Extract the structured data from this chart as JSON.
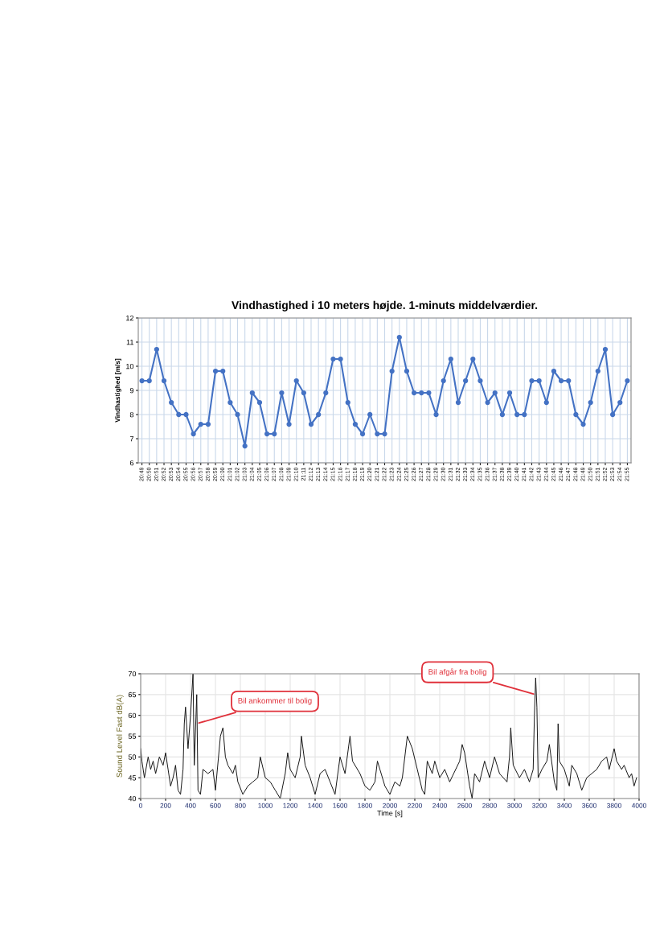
{
  "chart_data": [
    {
      "type": "line",
      "title": "Vindhastighed i 10 meters højde. 1-minuts middelværdier.",
      "ylabel": "Vindhastighed [m/s]",
      "categories": [
        "20:49",
        "20:50",
        "20:51",
        "20:52",
        "20:53",
        "20:54",
        "20:55",
        "20:56",
        "20:57",
        "20:58",
        "20:59",
        "21:00",
        "21:01",
        "21:02",
        "21:03",
        "21:04",
        "21:05",
        "21:06",
        "21:07",
        "21:08",
        "21:09",
        "21:10",
        "21:11",
        "21:12",
        "21:13",
        "21:14",
        "21:15",
        "21:16",
        "21:17",
        "21:18",
        "21:19",
        "21:20",
        "21:21",
        "21:22",
        "21:23",
        "21:24",
        "21:25",
        "21:26",
        "21:27",
        "21:28",
        "21:29",
        "21:30",
        "21:31",
        "21:32",
        "21:33",
        "21:34",
        "21:35",
        "21:36",
        "21:37",
        "21:38",
        "21:39",
        "21:40",
        "21:41",
        "21:42",
        "21:43",
        "21:44",
        "21:45",
        "21:46",
        "21:47",
        "21:48",
        "21:49",
        "21:50",
        "21:51",
        "21:52",
        "21:53",
        "21:54",
        "21:55"
      ],
      "series": [
        {
          "color": "#4472c4",
          "values": [
            9.4,
            9.4,
            10.7,
            9.4,
            8.5,
            8.0,
            8.0,
            7.2,
            7.6,
            7.6,
            9.8,
            9.8,
            8.5,
            8.0,
            6.7,
            8.9,
            8.5,
            7.2,
            7.2,
            8.9,
            7.6,
            9.4,
            8.9,
            7.6,
            8.0,
            8.9,
            10.3,
            10.3,
            8.5,
            7.6,
            7.2,
            8.0,
            7.2,
            7.2,
            9.8,
            11.2,
            9.8,
            8.9,
            8.9,
            8.9,
            8.0,
            9.4,
            10.3,
            8.5,
            9.4,
            10.3,
            9.4,
            8.5,
            8.9,
            8.0,
            8.9,
            8.0,
            8.0,
            9.4,
            9.4,
            8.5,
            9.8,
            9.4,
            9.4,
            8.0,
            7.6,
            8.5,
            9.8,
            10.7,
            8.0,
            8.5,
            9.4
          ]
        }
      ],
      "ylim": [
        6,
        12
      ],
      "yticks": [
        6,
        7,
        8,
        9,
        10,
        11,
        12
      ],
      "grid": true,
      "marker": "circle",
      "line_style": "solid"
    },
    {
      "type": "line",
      "xlabel": "Time [s]",
      "ylabel": "Sound Level Fast dB(A)",
      "series": [
        {
          "color": "#111111",
          "x": [
            0,
            10,
            30,
            60,
            80,
            100,
            120,
            150,
            180,
            200,
            220,
            240,
            260,
            280,
            300,
            320,
            340,
            350,
            360,
            380,
            400,
            420,
            430,
            450,
            460,
            480,
            500,
            540,
            580,
            600,
            640,
            660,
            680,
            700,
            740,
            760,
            780,
            820,
            860,
            900,
            940,
            960,
            1000,
            1040,
            1080,
            1120,
            1160,
            1180,
            1200,
            1240,
            1280,
            1290,
            1320,
            1360,
            1400,
            1440,
            1480,
            1520,
            1560,
            1600,
            1640,
            1680,
            1700,
            1760,
            1800,
            1840,
            1880,
            1900,
            1920,
            1960,
            2000,
            2040,
            2080,
            2100,
            2140,
            2180,
            2220,
            2260,
            2280,
            2300,
            2340,
            2360,
            2400,
            2440,
            2480,
            2560,
            2580,
            2600,
            2640,
            2660,
            2680,
            2720,
            2760,
            2800,
            2840,
            2880,
            2940,
            2960,
            2970,
            2990,
            3040,
            3080,
            3120,
            3150,
            3160,
            3170,
            3180,
            3190,
            3220,
            3260,
            3280,
            3320,
            3340,
            3350,
            3360,
            3400,
            3440,
            3460,
            3500,
            3540,
            3580,
            3620,
            3660,
            3700,
            3740,
            3760,
            3800,
            3820,
            3860,
            3880,
            3920,
            3940,
            3960,
            3980
          ],
          "values": [
            52,
            49,
            45,
            50,
            47,
            49,
            46,
            50,
            48,
            51,
            47,
            43,
            45,
            48,
            42,
            41,
            47,
            58,
            62,
            52,
            60,
            70,
            48,
            65,
            42,
            41,
            47,
            46,
            47,
            42,
            55,
            57,
            50,
            48,
            46,
            48,
            44,
            41,
            43,
            44,
            45,
            50,
            45,
            44,
            42,
            40,
            46,
            51,
            47,
            45,
            50,
            55,
            48,
            45,
            41,
            46,
            47,
            44,
            41,
            50,
            46,
            55,
            49,
            46,
            43,
            42,
            44,
            49,
            47,
            43,
            41,
            44,
            43,
            45,
            55,
            52,
            47,
            42,
            41,
            49,
            46,
            49,
            45,
            47,
            44,
            49,
            53,
            51,
            43,
            40,
            46,
            44,
            49,
            45,
            50,
            46,
            44,
            50,
            57,
            48,
            45,
            47,
            44,
            47,
            60,
            69,
            62,
            45,
            47,
            49,
            53,
            44,
            42,
            58,
            49,
            47,
            43,
            48,
            46,
            42,
            45,
            46,
            47,
            49,
            50,
            47,
            52,
            49,
            47,
            48,
            45,
            46,
            43,
            45
          ]
        }
      ],
      "xlim": [
        0,
        4000
      ],
      "xticks": [
        0,
        200,
        400,
        600,
        800,
        1000,
        1200,
        1400,
        1600,
        1800,
        2000,
        2200,
        2400,
        2600,
        2800,
        3000,
        3200,
        3400,
        3600,
        3800,
        4000
      ],
      "ylim": [
        40,
        70
      ],
      "yticks": [
        40,
        45,
        50,
        55,
        60,
        65,
        70
      ],
      "grid": true,
      "line_style": "solid",
      "annotations": [
        {
          "text": "Bil ankommer til bolig",
          "x": 450,
          "y": 58
        },
        {
          "text": "Bil afgår fra bolig",
          "x": 3170,
          "y": 65
        }
      ]
    }
  ]
}
